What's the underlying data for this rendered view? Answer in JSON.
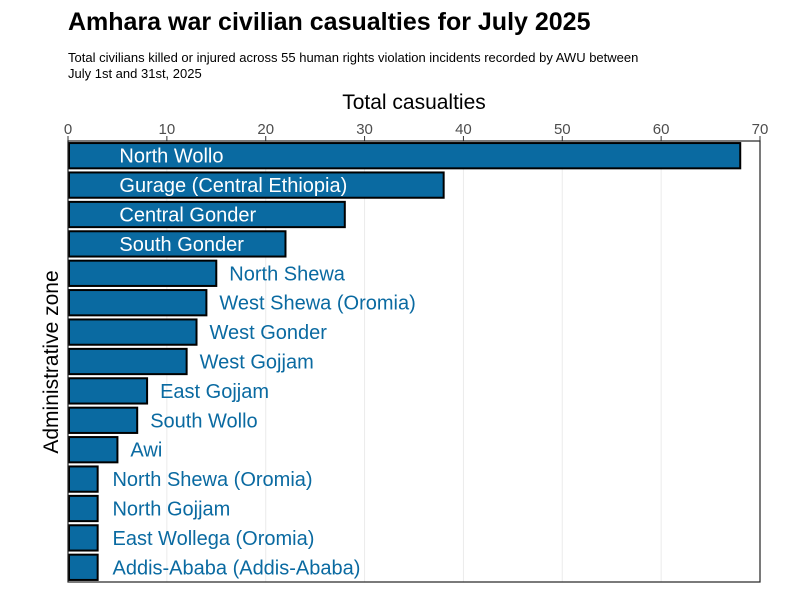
{
  "title": "Amhara war civilian casualties for July 2025",
  "subtitle": "Total civilians killed or injured across 55 human rights violation incidents recorded by AWU between\n July 1st and 31st, 2025",
  "colors": {
    "bar": "#0a6aa1",
    "bar_stroke": "#000000",
    "label_inside": "#ffffff",
    "label_outside": "#0a6aa1",
    "grid": "#ebebeb"
  },
  "chart_data": {
    "type": "bar",
    "orientation": "horizontal",
    "xlabel": "Total casualties",
    "ylabel": "Administrative zone",
    "xlim": [
      0,
      70
    ],
    "x_ticks": [
      0,
      10,
      20,
      30,
      40,
      50,
      60,
      70
    ],
    "x_axis_position": "top",
    "grid": "vertical",
    "categories": [
      "North Wollo",
      "Gurage (Central Ethiopia)",
      "Central Gonder",
      "South Gonder",
      "North Shewa",
      "West Shewa (Oromia)",
      "West Gonder",
      "West Gojjam",
      "East Gojjam",
      "South Wollo",
      "Awi",
      "North Shewa (Oromia)",
      "North Gojjam",
      "East Wollega (Oromia)",
      "Addis-Ababa (Addis-Ababa)"
    ],
    "values": [
      68,
      38,
      28,
      22,
      15,
      14,
      13,
      12,
      8,
      7,
      5,
      3,
      3,
      3,
      3
    ]
  }
}
